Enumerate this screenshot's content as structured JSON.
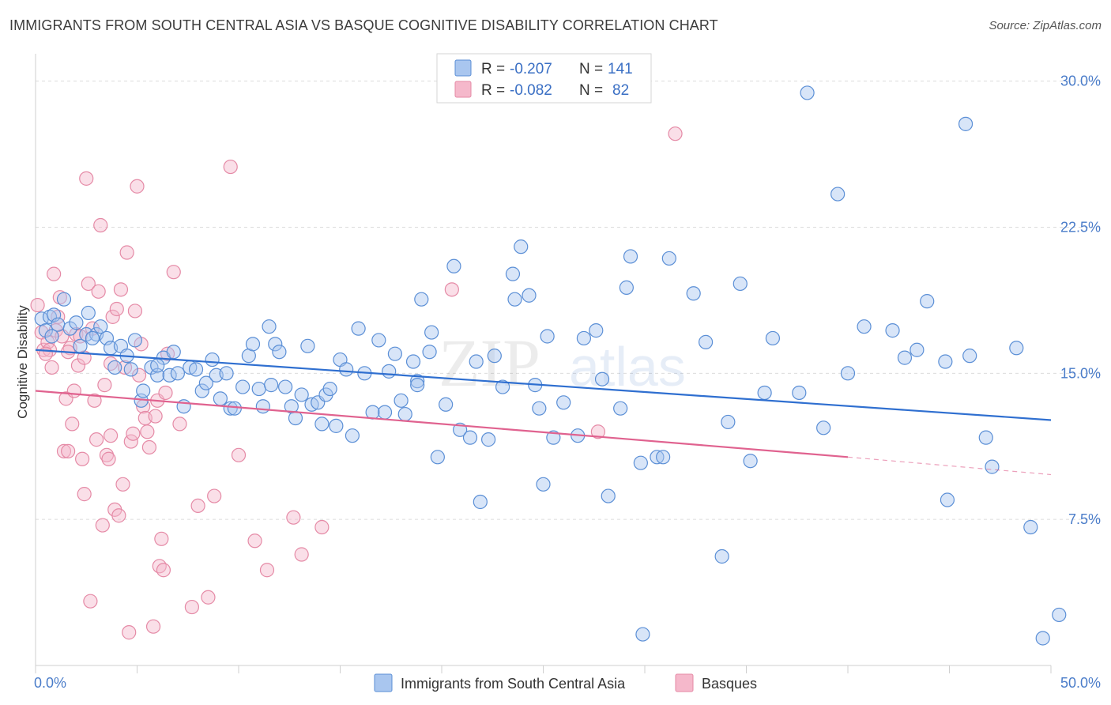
{
  "title": "IMMIGRANTS FROM SOUTH CENTRAL ASIA VS BASQUE COGNITIVE DISABILITY CORRELATION CHART",
  "source": "Source: ZipAtlas.com",
  "watermark": {
    "zip": "ZIP",
    "atlas": "atlas"
  },
  "colors": {
    "blue_fill": "#a9c6ef",
    "blue_stroke": "#5b8fd6",
    "blue_line": "#2f6fd0",
    "pink_fill": "#f5b8cb",
    "pink_stroke": "#e58aa6",
    "pink_line": "#e0628f",
    "grid": "#dcdcdc",
    "axis_text": "#4a7cc9"
  },
  "legend": {
    "r_label": "R =",
    "n_label": "N =",
    "series": [
      {
        "r": "-0.207",
        "n": "141"
      },
      {
        "r": "-0.082",
        "n": "82"
      }
    ]
  },
  "chart_data": {
    "type": "scatter",
    "title": "IMMIGRANTS FROM SOUTH CENTRAL ASIA VS BASQUE COGNITIVE DISABILITY CORRELATION CHART",
    "xlabel": "",
    "ylabel": "Cognitive Disability",
    "xlim": [
      0,
      50
    ],
    "ylim": [
      0,
      31
    ],
    "x_ticks": [
      "0.0%",
      "50.0%"
    ],
    "y_ticks": [
      {
        "value": 7.5,
        "label": "7.5%"
      },
      {
        "value": 15.0,
        "label": "15.0%"
      },
      {
        "value": 22.5,
        "label": "22.5%"
      },
      {
        "value": 30.0,
        "label": "30.0%"
      }
    ],
    "series": [
      {
        "name": "Immigrants from South Central Asia",
        "color": "blue",
        "trend": {
          "x0": 0,
          "y0": 16.2,
          "x1": 50,
          "y1": 12.6
        },
        "points": [
          [
            0.3,
            17.8
          ],
          [
            0.5,
            17.2
          ],
          [
            0.7,
            17.9
          ],
          [
            0.9,
            18.0
          ],
          [
            1.1,
            17.5
          ],
          [
            1.4,
            18.8
          ],
          [
            1.7,
            17.3
          ],
          [
            2.0,
            17.6
          ],
          [
            2.2,
            16.4
          ],
          [
            2.5,
            17.0
          ],
          [
            2.6,
            18.1
          ],
          [
            3.0,
            17.0
          ],
          [
            3.2,
            17.4
          ],
          [
            3.5,
            16.8
          ],
          [
            3.7,
            16.3
          ],
          [
            3.9,
            15.3
          ],
          [
            4.2,
            16.4
          ],
          [
            4.5,
            15.9
          ],
          [
            4.7,
            15.2
          ],
          [
            4.9,
            16.7
          ],
          [
            5.2,
            13.6
          ],
          [
            5.3,
            14.1
          ],
          [
            5.7,
            15.3
          ],
          [
            6.0,
            14.9
          ],
          [
            6.3,
            15.8
          ],
          [
            6.6,
            14.9
          ],
          [
            6.8,
            16.1
          ],
          [
            7.0,
            15.0
          ],
          [
            7.3,
            13.3
          ],
          [
            7.6,
            15.3
          ],
          [
            7.9,
            15.2
          ],
          [
            8.2,
            14.1
          ],
          [
            8.4,
            14.5
          ],
          [
            8.7,
            15.7
          ],
          [
            8.9,
            14.9
          ],
          [
            9.1,
            13.7
          ],
          [
            9.4,
            15.0
          ],
          [
            9.6,
            13.2
          ],
          [
            9.8,
            13.2
          ],
          [
            10.2,
            14.3
          ],
          [
            10.5,
            15.9
          ],
          [
            10.7,
            16.5
          ],
          [
            11.0,
            14.2
          ],
          [
            11.2,
            13.3
          ],
          [
            11.5,
            17.4
          ],
          [
            11.8,
            16.5
          ],
          [
            12.0,
            16.1
          ],
          [
            12.3,
            14.3
          ],
          [
            12.6,
            13.3
          ],
          [
            12.8,
            12.7
          ],
          [
            13.1,
            13.9
          ],
          [
            13.4,
            16.4
          ],
          [
            13.6,
            13.4
          ],
          [
            13.9,
            13.5
          ],
          [
            14.1,
            12.4
          ],
          [
            14.3,
            13.9
          ],
          [
            14.5,
            14.2
          ],
          [
            14.8,
            12.3
          ],
          [
            15.0,
            15.7
          ],
          [
            15.3,
            15.2
          ],
          [
            15.6,
            11.8
          ],
          [
            15.9,
            17.3
          ],
          [
            16.2,
            15.0
          ],
          [
            16.6,
            13.0
          ],
          [
            16.9,
            16.7
          ],
          [
            17.2,
            13.0
          ],
          [
            17.4,
            15.1
          ],
          [
            17.7,
            16.0
          ],
          [
            18.0,
            13.6
          ],
          [
            18.2,
            12.9
          ],
          [
            18.6,
            15.6
          ],
          [
            18.8,
            14.6
          ],
          [
            19.0,
            18.8
          ],
          [
            19.4,
            16.1
          ],
          [
            19.5,
            17.1
          ],
          [
            19.8,
            10.7
          ],
          [
            20.2,
            13.4
          ],
          [
            20.6,
            20.5
          ],
          [
            20.9,
            12.1
          ],
          [
            21.4,
            11.7
          ],
          [
            21.7,
            15.6
          ],
          [
            21.9,
            8.4
          ],
          [
            22.3,
            11.6
          ],
          [
            22.6,
            15.9
          ],
          [
            23.0,
            14.3
          ],
          [
            23.5,
            20.1
          ],
          [
            23.6,
            18.8
          ],
          [
            23.9,
            21.5
          ],
          [
            24.3,
            19.0
          ],
          [
            24.6,
            14.4
          ],
          [
            24.8,
            13.2
          ],
          [
            25.0,
            9.3
          ],
          [
            25.2,
            16.9
          ],
          [
            25.5,
            11.7
          ],
          [
            26.0,
            13.5
          ],
          [
            26.7,
            11.8
          ],
          [
            27.0,
            16.8
          ],
          [
            27.6,
            17.2
          ],
          [
            27.9,
            14.7
          ],
          [
            28.2,
            8.7
          ],
          [
            28.8,
            13.2
          ],
          [
            29.1,
            19.4
          ],
          [
            29.3,
            21.0
          ],
          [
            29.8,
            10.4
          ],
          [
            29.9,
            1.6
          ],
          [
            30.6,
            10.7
          ],
          [
            30.9,
            10.7
          ],
          [
            31.2,
            20.9
          ],
          [
            32.4,
            19.1
          ],
          [
            33.0,
            16.6
          ],
          [
            33.8,
            5.6
          ],
          [
            34.1,
            12.5
          ],
          [
            34.7,
            19.6
          ],
          [
            35.2,
            10.5
          ],
          [
            35.9,
            14.0
          ],
          [
            36.3,
            16.8
          ],
          [
            37.6,
            14.0
          ],
          [
            38.0,
            29.4
          ],
          [
            38.8,
            12.2
          ],
          [
            39.5,
            24.2
          ],
          [
            40.0,
            15.0
          ],
          [
            40.8,
            17.4
          ],
          [
            42.2,
            17.2
          ],
          [
            42.8,
            15.8
          ],
          [
            43.4,
            16.2
          ],
          [
            43.9,
            18.7
          ],
          [
            44.8,
            15.6
          ],
          [
            44.9,
            8.5
          ],
          [
            45.8,
            27.8
          ],
          [
            46.0,
            15.9
          ],
          [
            46.8,
            11.7
          ],
          [
            47.1,
            10.2
          ],
          [
            48.3,
            16.3
          ],
          [
            49.0,
            7.1
          ],
          [
            49.6,
            1.4
          ],
          [
            50.4,
            2.6
          ],
          [
            0.8,
            16.9
          ],
          [
            2.8,
            16.8
          ],
          [
            6.0,
            15.4
          ],
          [
            11.6,
            14.4
          ],
          [
            18.8,
            14.4
          ]
        ]
      },
      {
        "name": "Basques",
        "color": "pink",
        "trend": {
          "x0": 0,
          "y0": 14.1,
          "x1": 40,
          "y1": 10.7,
          "dash_x1": 50,
          "dash_y1": 9.8
        },
        "points": [
          [
            0.1,
            18.5
          ],
          [
            0.3,
            17.1
          ],
          [
            0.4,
            16.2
          ],
          [
            0.6,
            16.6
          ],
          [
            0.7,
            16.2
          ],
          [
            0.8,
            15.3
          ],
          [
            0.9,
            20.1
          ],
          [
            1.0,
            17.2
          ],
          [
            1.1,
            17.9
          ],
          [
            1.2,
            18.9
          ],
          [
            1.3,
            16.9
          ],
          [
            1.4,
            11.0
          ],
          [
            1.5,
            13.7
          ],
          [
            1.6,
            11.0
          ],
          [
            1.7,
            16.3
          ],
          [
            1.8,
            12.4
          ],
          [
            1.9,
            14.1
          ],
          [
            2.0,
            17.0
          ],
          [
            2.1,
            15.4
          ],
          [
            2.2,
            16.9
          ],
          [
            2.3,
            10.6
          ],
          [
            2.4,
            8.8
          ],
          [
            2.5,
            25.0
          ],
          [
            2.6,
            19.6
          ],
          [
            2.7,
            3.3
          ],
          [
            2.8,
            17.3
          ],
          [
            2.9,
            13.6
          ],
          [
            3.0,
            11.6
          ],
          [
            3.1,
            19.2
          ],
          [
            3.2,
            22.6
          ],
          [
            3.3,
            7.2
          ],
          [
            3.4,
            14.4
          ],
          [
            3.5,
            10.8
          ],
          [
            3.6,
            10.6
          ],
          [
            3.7,
            11.8
          ],
          [
            3.8,
            17.9
          ],
          [
            3.9,
            8.0
          ],
          [
            4.0,
            18.3
          ],
          [
            4.1,
            7.7
          ],
          [
            4.2,
            19.3
          ],
          [
            4.3,
            9.3
          ],
          [
            4.4,
            15.3
          ],
          [
            4.5,
            21.2
          ],
          [
            4.6,
            1.7
          ],
          [
            4.7,
            11.5
          ],
          [
            4.8,
            11.9
          ],
          [
            4.9,
            18.2
          ],
          [
            5.0,
            24.6
          ],
          [
            5.1,
            14.9
          ],
          [
            5.2,
            16.5
          ],
          [
            5.3,
            13.3
          ],
          [
            5.4,
            12.7
          ],
          [
            5.5,
            12.0
          ],
          [
            5.6,
            11.2
          ],
          [
            5.8,
            2.0
          ],
          [
            6.0,
            13.6
          ],
          [
            6.1,
            5.1
          ],
          [
            6.2,
            6.5
          ],
          [
            6.3,
            4.9
          ],
          [
            6.5,
            16.0
          ],
          [
            6.8,
            20.2
          ],
          [
            7.7,
            3.0
          ],
          [
            8.0,
            8.2
          ],
          [
            8.5,
            3.5
          ],
          [
            8.8,
            8.7
          ],
          [
            9.6,
            25.6
          ],
          [
            10.0,
            10.8
          ],
          [
            10.8,
            6.4
          ],
          [
            11.4,
            4.9
          ],
          [
            12.7,
            7.6
          ],
          [
            13.1,
            5.7
          ],
          [
            14.1,
            7.1
          ],
          [
            20.5,
            19.3
          ],
          [
            27.7,
            12.0
          ],
          [
            31.5,
            27.3
          ],
          [
            0.5,
            16.0
          ],
          [
            1.6,
            16.1
          ],
          [
            2.4,
            15.8
          ],
          [
            3.7,
            15.5
          ],
          [
            5.9,
            12.8
          ],
          [
            6.4,
            14.0
          ],
          [
            7.1,
            12.4
          ]
        ]
      }
    ]
  },
  "bottom_legend": [
    {
      "label": "Immigrants from South Central Asia"
    },
    {
      "label": "Basques"
    }
  ]
}
